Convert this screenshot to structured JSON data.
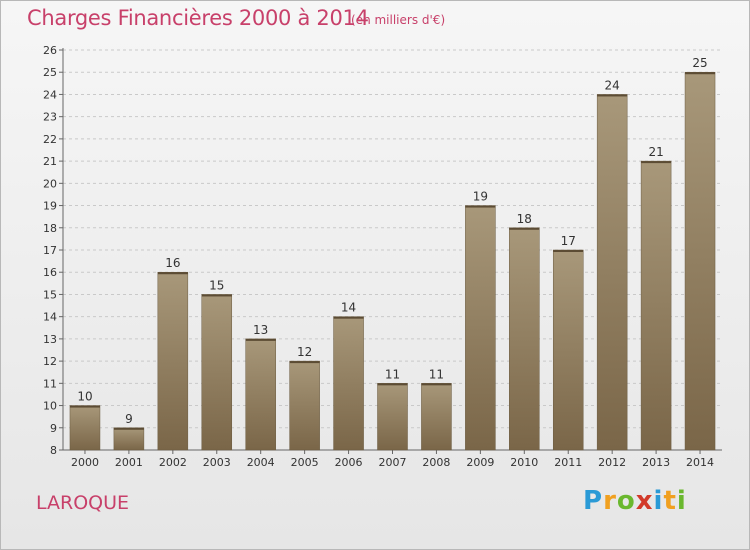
{
  "chart_data": {
    "type": "bar",
    "title": "Charges Financières 2000 à 2014",
    "subtitle": "(en milliers d'€)",
    "categories": [
      "2000",
      "2001",
      "2002",
      "2003",
      "2004",
      "2005",
      "2006",
      "2007",
      "2008",
      "2009",
      "2010",
      "2011",
      "2012",
      "2013",
      "2014"
    ],
    "values": [
      10,
      9,
      16,
      15,
      13,
      12,
      14,
      11,
      11,
      19,
      18,
      17,
      24,
      21,
      25
    ],
    "ylim": [
      8,
      26
    ],
    "yticks": [
      8,
      9,
      10,
      11,
      12,
      13,
      14,
      15,
      16,
      17,
      18,
      19,
      20,
      21,
      22,
      23,
      24,
      25,
      26
    ],
    "grid": true,
    "bar_color_top": "#a8987a",
    "bar_color_bottom": "#7a6648"
  },
  "location_label": "LAROQUE",
  "logo": {
    "text": "Proxiti",
    "letters": [
      "P",
      "r",
      "o",
      "x",
      "i",
      "t",
      "i"
    ],
    "colors": [
      "#2a9ad6",
      "#f0a020",
      "#6ab82e",
      "#d23a2a",
      "#2a9ad6",
      "#f0a020",
      "#6ab82e"
    ]
  }
}
